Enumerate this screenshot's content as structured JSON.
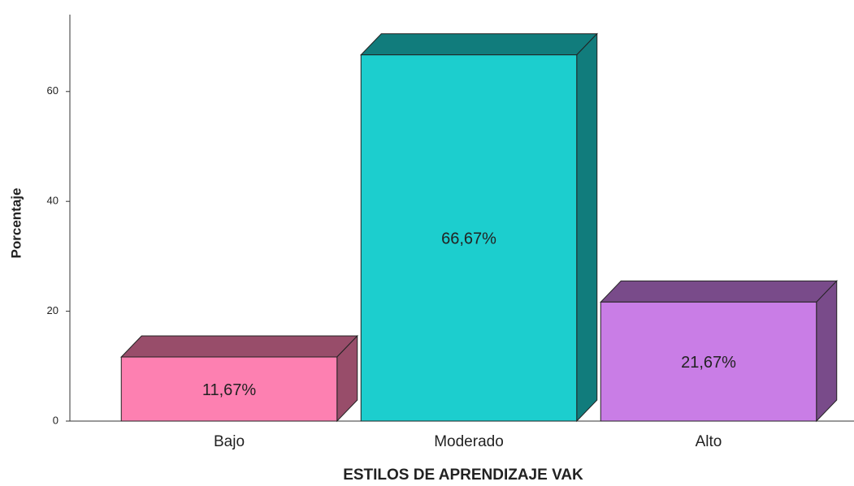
{
  "chart_data": {
    "type": "bar3d",
    "xlabel": "ESTILOS DE APRENDIZAJE VAK",
    "ylabel": "Porcentaje",
    "categories": [
      "Bajo",
      "Moderado",
      "Alto"
    ],
    "values": [
      11.67,
      66.67,
      21.67
    ],
    "value_labels": [
      "11,67%",
      "66,67%",
      "21,67%"
    ],
    "colors": [
      "#fd80b1",
      "#1ccece",
      "#c97de6"
    ],
    "ylim": [
      0,
      74
    ],
    "yticks": [
      0,
      20,
      40,
      60
    ],
    "grid": false
  }
}
